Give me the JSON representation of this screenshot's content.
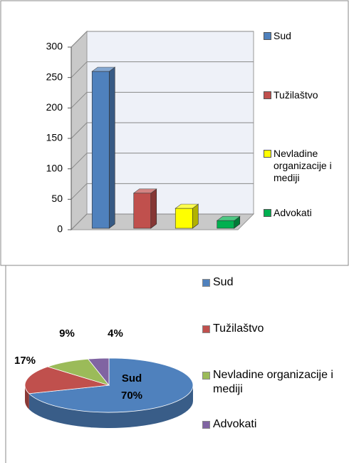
{
  "chart_data": [
    {
      "type": "bar",
      "categories": [
        null
      ],
      "series": [
        {
          "name": "Sud",
          "color": "#4f81bd",
          "values": [
            260
          ]
        },
        {
          "name": "Tužilaštvo",
          "color": "#c0504d",
          "values": [
            60
          ]
        },
        {
          "name": "Nevladine organizacije i mediji",
          "color": "#ffff00",
          "values": [
            35
          ]
        },
        {
          "name": "Advokati",
          "color": "#00b050",
          "values": [
            15
          ]
        }
      ],
      "ylim": [
        0,
        300
      ],
      "yticks": [
        0,
        50,
        100,
        150,
        200,
        250,
        300
      ],
      "grid": true,
      "legend": "right"
    },
    {
      "type": "pie",
      "categories": [
        "Sud",
        "Tužilaštvo",
        "Nevladine organizacije i mediji",
        "Advokati"
      ],
      "values": [
        70,
        17,
        9,
        4
      ],
      "value_labels": [
        "70%",
        "17%",
        "9%",
        "4%"
      ],
      "colors": [
        "#4f81bd",
        "#c0504d",
        "#9bbb59",
        "#8064a2"
      ],
      "legend": "right"
    }
  ]
}
